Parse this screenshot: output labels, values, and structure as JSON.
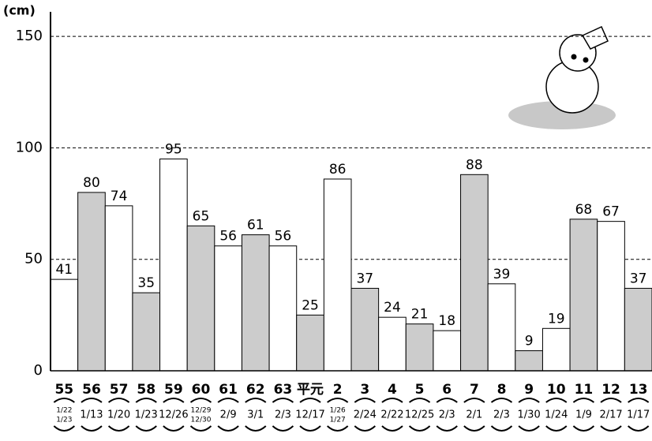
{
  "chart_data": {
    "type": "bar",
    "y_label": "(cm)",
    "categories": [
      "55",
      "56",
      "57",
      "58",
      "59",
      "60",
      "61",
      "62",
      "63",
      "平元",
      "2",
      "3",
      "4",
      "5",
      "6",
      "7",
      "8",
      "9",
      "10",
      "11",
      "12",
      "13"
    ],
    "dates": [
      [
        "1/22",
        "1/23"
      ],
      [
        "1/13"
      ],
      [
        "1/20"
      ],
      [
        "1/23"
      ],
      [
        "12/26"
      ],
      [
        "12/29",
        "12/30"
      ],
      [
        "2/9"
      ],
      [
        "3/1"
      ],
      [
        "2/3"
      ],
      [
        "12/17"
      ],
      [
        "1/26",
        "1/27"
      ],
      [
        "2/24"
      ],
      [
        "2/22"
      ],
      [
        "12/25"
      ],
      [
        "2/3"
      ],
      [
        "2/1"
      ],
      [
        "2/3"
      ],
      [
        "1/30"
      ],
      [
        "1/24"
      ],
      [
        "1/9"
      ],
      [
        "2/17"
      ],
      [
        "1/17"
      ]
    ],
    "values": [
      41,
      80,
      74,
      35,
      95,
      65,
      56,
      61,
      56,
      25,
      86,
      37,
      24,
      21,
      18,
      88,
      39,
      9,
      19,
      68,
      67,
      37
    ],
    "colors": [
      "#ffffff",
      "#cccccc",
      "#ffffff",
      "#cccccc",
      "#ffffff",
      "#cccccc",
      "#ffffff",
      "#cccccc",
      "#ffffff",
      "#cccccc",
      "#ffffff",
      "#cccccc",
      "#ffffff",
      "#cccccc",
      "#ffffff",
      "#cccccc",
      "#ffffff",
      "#cccccc",
      "#ffffff",
      "#cccccc",
      "#ffffff",
      "#cccccc"
    ],
    "ylim": [
      0,
      161
    ],
    "yticks": [
      0,
      50,
      100,
      150
    ],
    "grid": true
  }
}
